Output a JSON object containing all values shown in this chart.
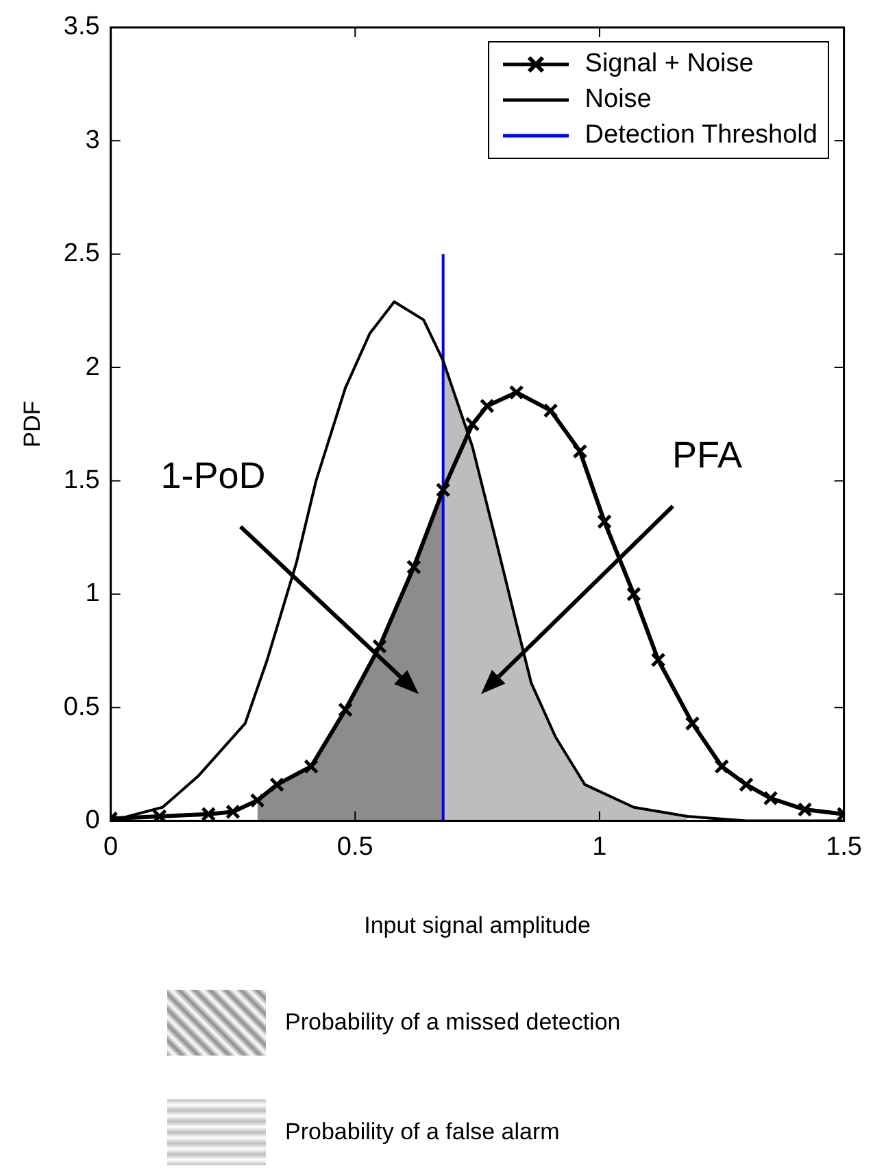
{
  "chart_data": {
    "type": "line",
    "xlabel": "Input signal amplitude",
    "ylabel": "PDF",
    "xlim": [
      0,
      1.5
    ],
    "xticks": [
      0,
      0.5,
      1,
      1.5
    ],
    "ylim": [
      0,
      3.5
    ],
    "yticks": [
      0,
      0.5,
      1,
      1.5,
      2,
      2.5,
      3,
      3.5
    ],
    "grid": false,
    "legend": "top right",
    "line_style": "solid",
    "series": [
      {
        "name": "Signal + Noise",
        "color": "#000000",
        "marker": "cross",
        "x": [
          0,
          0.1,
          0.2,
          0.25,
          0.3,
          0.34,
          0.41,
          0.48,
          0.55,
          0.62,
          0.68,
          0.74,
          0.77,
          0.83,
          0.9,
          0.96,
          1.01,
          1.07,
          1.12,
          1.19,
          1.25,
          1.3,
          1.35,
          1.42,
          1.5
        ],
        "values": [
          0.01,
          0.02,
          0.03,
          0.04,
          0.09,
          0.16,
          0.24,
          0.49,
          0.77,
          1.12,
          1.46,
          1.75,
          1.83,
          1.89,
          1.81,
          1.63,
          1.32,
          1.0,
          0.71,
          0.43,
          0.24,
          0.16,
          0.1,
          0.05,
          0.03
        ]
      },
      {
        "name": "Noise",
        "color": "#000000",
        "marker": "none",
        "x": [
          0,
          0.106,
          0.18,
          0.275,
          0.32,
          0.38,
          0.42,
          0.48,
          0.53,
          0.58,
          0.64,
          0.68,
          0.74,
          0.79,
          0.83,
          0.86,
          0.91,
          0.97,
          1.07,
          1.18,
          1.3,
          1.5
        ],
        "values": [
          0,
          0.06,
          0.2,
          0.43,
          0.71,
          1.14,
          1.5,
          1.91,
          2.15,
          2.29,
          2.21,
          2.03,
          1.65,
          1.22,
          0.87,
          0.61,
          0.37,
          0.16,
          0.06,
          0.02,
          0,
          0
        ]
      },
      {
        "name": "Detection Threshold",
        "color": "#0000ff",
        "marker": "none",
        "x": [
          0.68,
          0.68
        ],
        "values": [
          0,
          2.5
        ]
      },
      {
        "type": "area",
        "color": "#8c8c8c",
        "x": [
          0.3,
          0.34,
          0.41,
          0.48,
          0.55,
          0.62,
          0.68
        ],
        "values": [
          0.09,
          0.16,
          0.24,
          0.49,
          0.77,
          1.12,
          1.46
        ]
      },
      {
        "type": "area",
        "color": "#bdbdbd",
        "x": [
          0.68,
          0.74,
          0.79,
          0.83,
          0.86,
          0.91,
          0.97,
          1.07,
          1.18
        ],
        "values": [
          2.03,
          1.65,
          1.22,
          0.87,
          0.61,
          0.37,
          0.16,
          0.06,
          0.02
        ]
      }
    ],
    "annotations": [
      "1-PoD",
      "PFA",
      "Probability of a missed detection",
      "Probability of a false alarm"
    ]
  }
}
